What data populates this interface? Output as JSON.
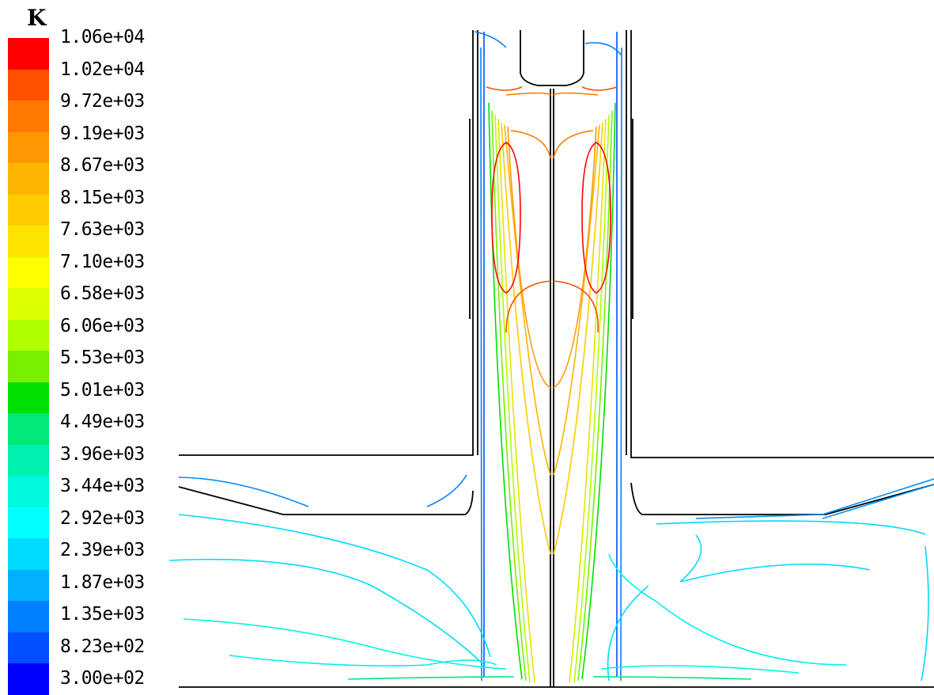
{
  "unit": "K",
  "legend": {
    "labels": [
      "1.06e+04",
      "1.02e+04",
      "9.72e+03",
      "9.19e+03",
      "8.67e+03",
      "8.15e+03",
      "7.63e+03",
      "7.10e+03",
      "6.58e+03",
      "6.06e+03",
      "5.53e+03",
      "5.01e+03",
      "4.49e+03",
      "3.96e+03",
      "3.44e+03",
      "2.92e+03",
      "2.39e+03",
      "1.87e+03",
      "1.35e+03",
      "8.23e+02",
      "3.00e+02"
    ],
    "colors": [
      "#ff0000",
      "#ff5000",
      "#ff7800",
      "#ff9800",
      "#ffb400",
      "#ffcc00",
      "#ffe400",
      "#fffe00",
      "#dcff00",
      "#b0ff00",
      "#78f000",
      "#00e000",
      "#00e878",
      "#00f0b0",
      "#00f8dc",
      "#00ffff",
      "#00dcff",
      "#00b0ff",
      "#0080ff",
      "#0050ff",
      "#0000ff"
    ]
  }
}
